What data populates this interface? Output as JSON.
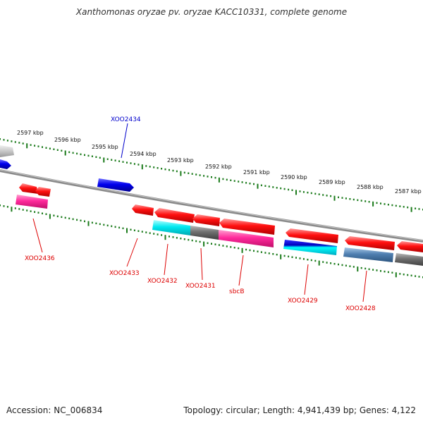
{
  "title": "Xanthomonas oryzae pv. oryzae KACC10331, complete genome",
  "footer": {
    "accession": "Accession: NC_006834",
    "summary": "Topology: circular; Length: 4,941,439 bp; Genes: 4,122"
  },
  "colors": {
    "backbone": "#8a8a8a",
    "tick": "#1a7a1a",
    "forward_gene": "#0000dd",
    "reverse_gene": "#ff0000",
    "label_forward": "#0000cc",
    "label_reverse": "#dd0000",
    "magenta_feature": "#ff2a9c",
    "cyan_feature": "#00e8f0",
    "gray_feature": "#707070",
    "steelblue_feature": "#4f7fb0"
  },
  "kbp_labels": [
    "2597 kbp",
    "2596 kbp",
    "2595 kbp",
    "2594 kbp",
    "2593 kbp",
    "2592 kbp",
    "2591 kbp",
    "2590 kbp",
    "2589 kbp",
    "2588 kbp",
    "2587 kbp"
  ],
  "gene_labels": [
    "XOO2434",
    "XOO2436",
    "XOO2433",
    "XOO2432",
    "XOO2431",
    "sbcB",
    "XOO2429",
    "XOO2428"
  ]
}
